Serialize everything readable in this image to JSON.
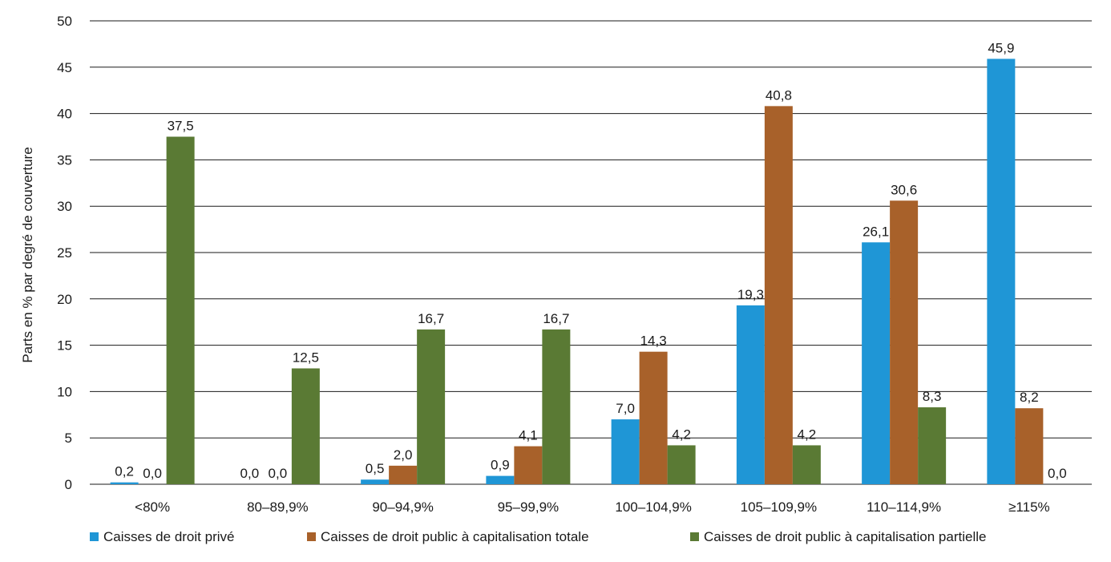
{
  "chart_data": {
    "type": "bar",
    "ylabel": "Parts en % par degré de couverture",
    "xlabel": "",
    "ylim": [
      0,
      50
    ],
    "yticks": [
      0,
      5,
      10,
      15,
      20,
      25,
      30,
      35,
      40,
      45,
      50
    ],
    "grid": true,
    "legend_position": "bottom",
    "categories": [
      "<80%",
      "80–89,9%",
      "90–94,9%",
      "95–99,9%",
      "100–104,9%",
      "105–109,9%",
      "110–114,9%",
      "≥115%"
    ],
    "series": [
      {
        "name": "Caisses de droit privé",
        "color": "#1f96d6",
        "values": [
          0.2,
          0.0,
          0.5,
          0.9,
          7.0,
          19.3,
          26.1,
          45.9
        ],
        "labels": [
          "0,2",
          "0,0",
          "0,5",
          "0,9",
          "7,0",
          "19,3",
          "26,1",
          "45,9"
        ]
      },
      {
        "name": "Caisses de droit public à capitalisation totale",
        "color": "#a8612a",
        "values": [
          0.0,
          0.0,
          2.0,
          4.1,
          14.3,
          40.8,
          30.6,
          8.2
        ],
        "labels": [
          "0,0",
          "0,0",
          "2,0",
          "4,1",
          "14,3",
          "40,8",
          "30,6",
          "8,2"
        ]
      },
      {
        "name": "Caisses de droit public à capitalisation partielle",
        "color": "#5a7a34",
        "values": [
          37.5,
          12.5,
          16.7,
          16.7,
          4.2,
          4.2,
          8.3,
          0.0
        ],
        "labels": [
          "37,5",
          "12,5",
          "16,7",
          "16,7",
          "4,2",
          "4,2",
          "8,3",
          "0,0"
        ]
      }
    ]
  }
}
